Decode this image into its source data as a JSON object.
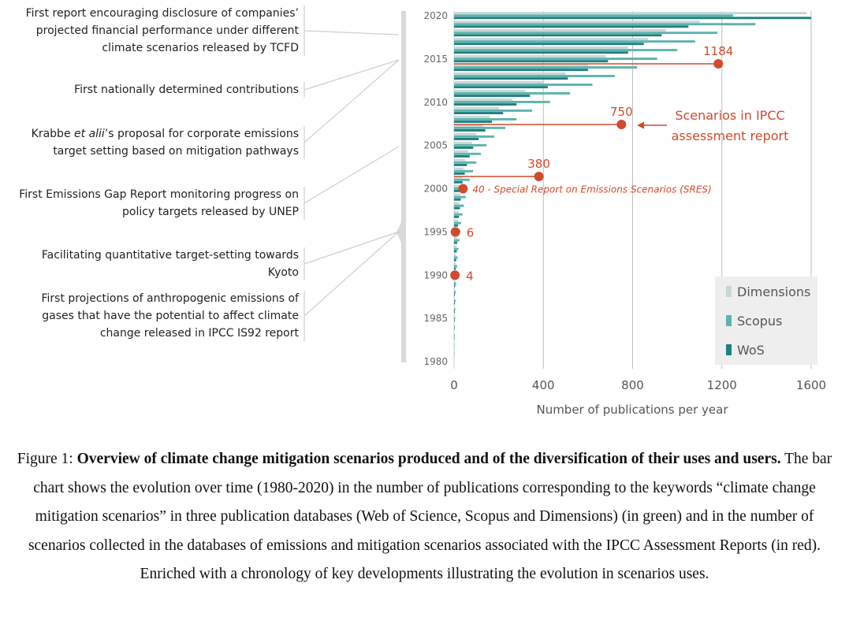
{
  "chart_data": {
    "type": "bar",
    "orientation": "horizontal",
    "xlabel": "Number of publications per year",
    "xlim": [
      0,
      1600
    ],
    "xticks": [
      "0",
      "400",
      "800",
      "1200",
      "1600"
    ],
    "yticks": [
      "2020",
      "2015",
      "2010",
      "2005",
      "2000",
      "1995",
      "1990",
      "1985",
      "1980"
    ],
    "categories": [
      1980,
      1981,
      1982,
      1983,
      1984,
      1985,
      1986,
      1987,
      1988,
      1989,
      1990,
      1991,
      1992,
      1993,
      1994,
      1995,
      1996,
      1997,
      1998,
      1999,
      2000,
      2001,
      2002,
      2003,
      2004,
      2005,
      2006,
      2007,
      2008,
      2009,
      2010,
      2011,
      2012,
      2013,
      2014,
      2015,
      2016,
      2017,
      2018,
      2019,
      2020
    ],
    "series": [
      {
        "name": "Dimensions",
        "color": "#c9d6d6",
        "values": [
          0,
          1,
          1,
          2,
          2,
          3,
          3,
          4,
          5,
          6,
          8,
          9,
          10,
          12,
          14,
          16,
          18,
          20,
          24,
          28,
          32,
          36,
          42,
          50,
          62,
          80,
          100,
          130,
          160,
          200,
          260,
          320,
          400,
          500,
          600,
          680,
          780,
          870,
          950,
          1100,
          1580
        ]
      },
      {
        "name": "Scopus",
        "color": "#5db3ad",
        "values": [
          0,
          2,
          2,
          3,
          4,
          5,
          6,
          7,
          8,
          10,
          12,
          14,
          16,
          20,
          24,
          28,
          32,
          38,
          44,
          52,
          60,
          70,
          85,
          100,
          120,
          145,
          180,
          230,
          280,
          350,
          430,
          520,
          620,
          720,
          820,
          910,
          1000,
          1080,
          1180,
          1350,
          1250
        ]
      },
      {
        "name": "WoS",
        "color": "#1f7f7e",
        "values": [
          0,
          1,
          1,
          2,
          2,
          3,
          3,
          4,
          4,
          5,
          6,
          8,
          10,
          12,
          14,
          16,
          18,
          22,
          26,
          30,
          34,
          38,
          48,
          58,
          70,
          86,
          110,
          140,
          170,
          220,
          280,
          340,
          420,
          510,
          600,
          690,
          780,
          850,
          930,
          1050,
          1600
        ]
      }
    ],
    "ipcc_scenarios": {
      "label": "Scenarios in IPCC assessment report",
      "points": [
        {
          "year": 1990,
          "value": 4,
          "label": "4"
        },
        {
          "year": 1995,
          "value": 6,
          "label": "6"
        },
        {
          "year": 2000,
          "value": 40,
          "label": "40 - Special Report on Emissions Scenarios (SRES)"
        },
        {
          "year": 2001,
          "value": 380,
          "label": "380"
        },
        {
          "year": 2007,
          "value": 750,
          "label": "750"
        },
        {
          "year": 2014,
          "value": 1184,
          "label": "1184"
        }
      ]
    },
    "legend_position": "bottom-right"
  },
  "annotations": [
    {
      "lines": [
        "First report encouraging disclosure of companies’",
        "projected financial performance under different",
        "climate scenarios released by TCFD"
      ],
      "year": 2017
    },
    {
      "lines": [
        "First nationally determined contributions"
      ],
      "year": 2015
    },
    {
      "lines": [
        "Krabbe et alii’s proposal for corporate emissions",
        "target setting based on mitigation pathways"
      ],
      "year": 2015
    },
    {
      "lines": [
        "First Emissions Gap Report monitoring progress on",
        "policy targets released by UNEP"
      ],
      "year": 2010
    },
    {
      "lines": [
        "Facilitating quantitative target-setting towards",
        "Kyoto"
      ],
      "year": 1997
    },
    {
      "lines": [
        "First projections of anthropogenic emissions of",
        "gases that have the potential to affect climate",
        "change released in IPCC IS92 report"
      ],
      "year": 1992
    }
  ],
  "caption": {
    "prefix": "Figure 1: ",
    "bold": "Overview of climate change mitigation scenarios produced and of the diversification of their uses and users.",
    "rest": " The bar chart shows the evolution over time (1980-2020) in the number of publications corresponding to the keywords “climate change mitigation scenarios” in three publication databases (Web of Science, Scopus and Dimensions) (in green) and in the number of scenarios collected in the databases of emissions and mitigation scenarios associated with the IPCC Assessment Reports (in red). Enriched with a chronology of key developments illustrating the evolution in scenarios uses."
  }
}
